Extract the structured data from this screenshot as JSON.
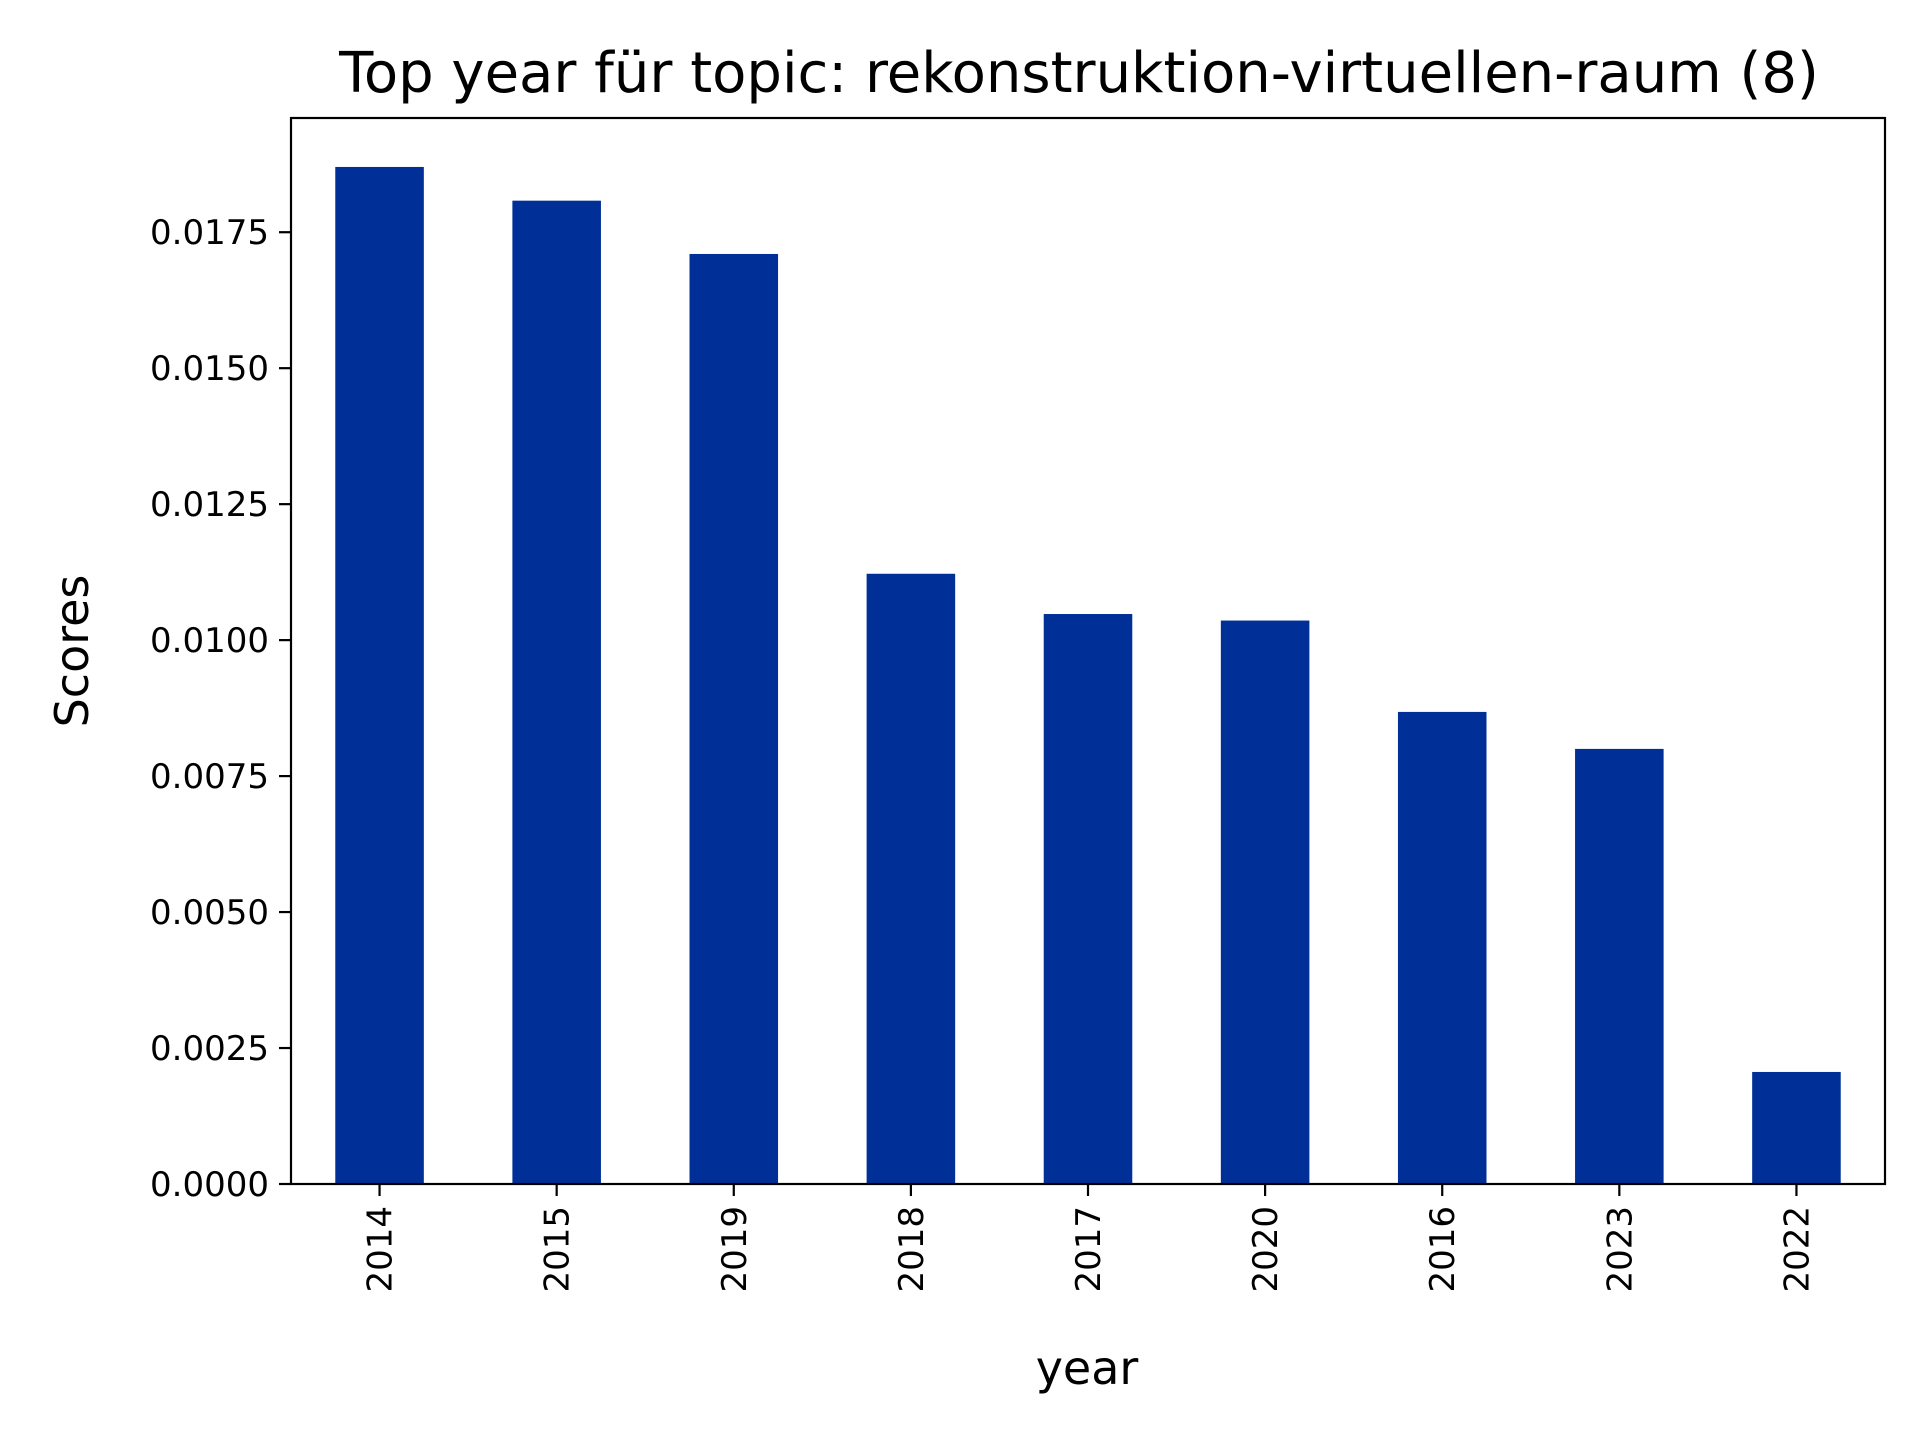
{
  "chart_data": {
    "type": "bar",
    "title": "Top year für topic: rekonstruktion-virtuellen-raum (8)",
    "xlabel": "year",
    "ylabel": "Scores",
    "categories": [
      "2014",
      "2015",
      "2019",
      "2018",
      "2017",
      "2020",
      "2016",
      "2023",
      "2022"
    ],
    "values": [
      0.0187,
      0.01808,
      0.0171,
      0.01122,
      0.01048,
      0.01036,
      0.00868,
      0.008,
      0.00206
    ],
    "ylim": [
      0,
      0.0196
    ],
    "yticks": [
      "0.0000",
      "0.0025",
      "0.0050",
      "0.0075",
      "0.0100",
      "0.0125",
      "0.0150",
      "0.0175"
    ],
    "bar_color": "#003097",
    "grid": false,
    "legend": "none"
  }
}
